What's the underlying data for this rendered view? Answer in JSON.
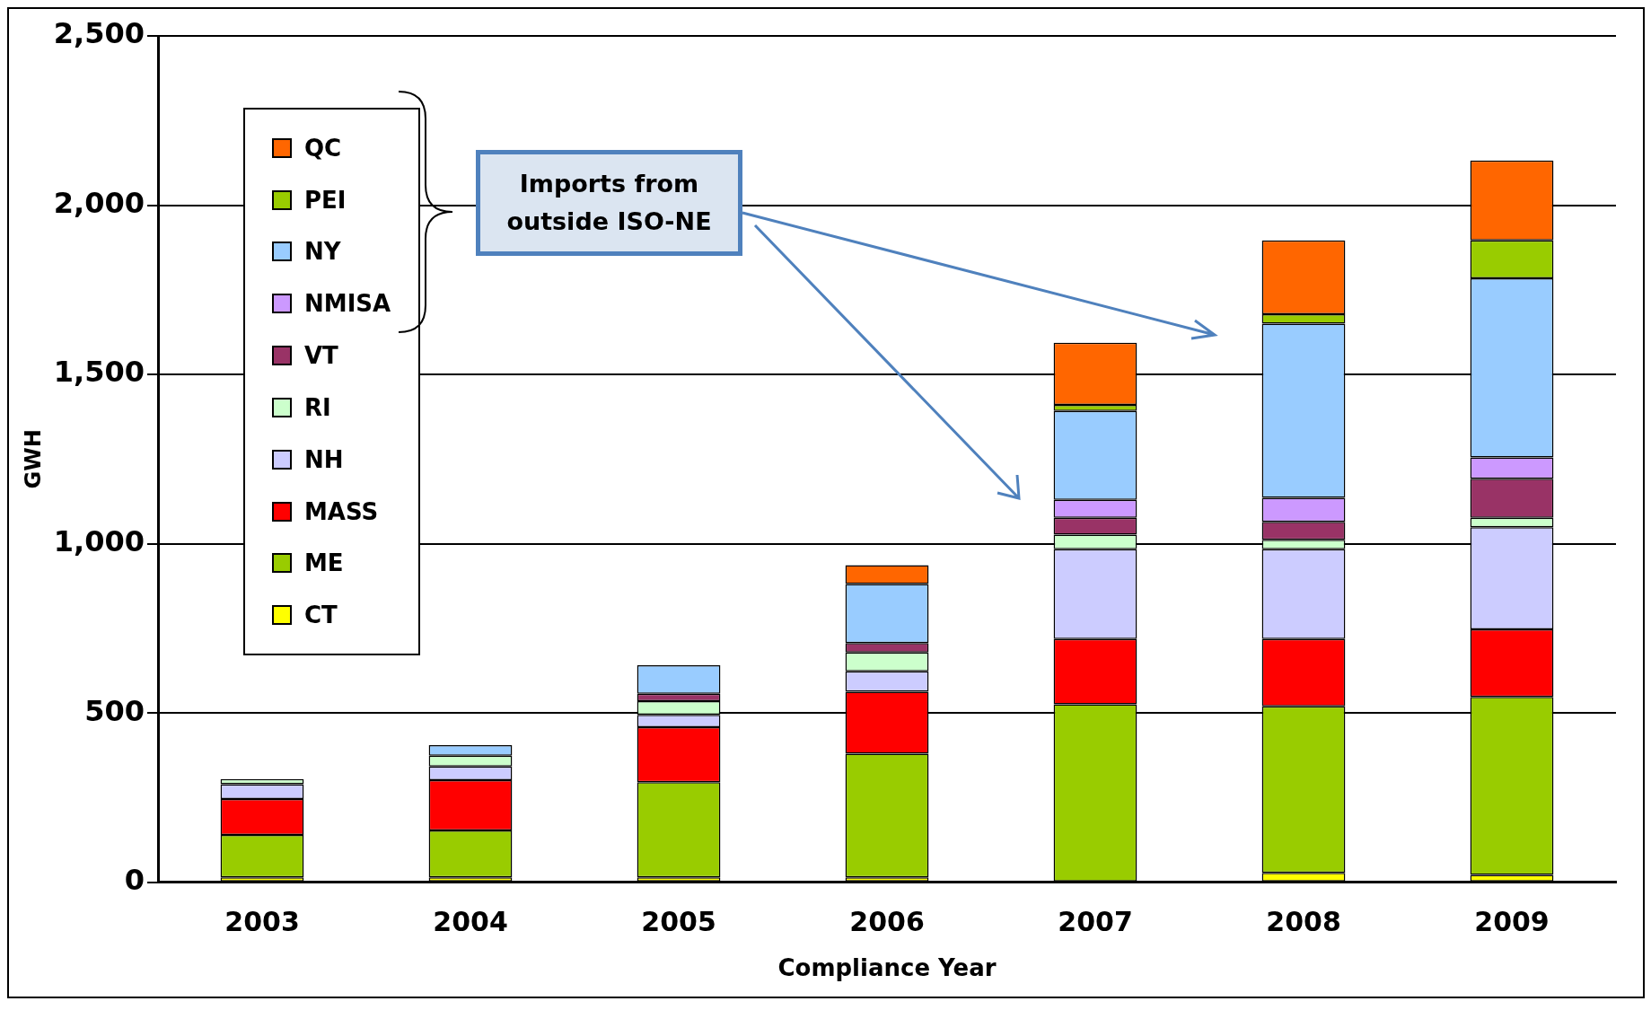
{
  "chart_data": {
    "type": "bar",
    "stacked": true,
    "xlabel": "Compliance Year",
    "ylabel": "GWH",
    "categories": [
      "2003",
      "2004",
      "2005",
      "2006",
      "2007",
      "2008",
      "2009"
    ],
    "series": [
      {
        "name": "CT",
        "color": "#ffff00",
        "values": [
          15,
          15,
          15,
          15,
          0,
          28,
          22
        ]
      },
      {
        "name": "ME",
        "color": "#99cc00",
        "values": [
          125,
          138,
          281,
          365,
          526,
          492,
          526
        ]
      },
      {
        "name": "MASS",
        "color": "#ff0000",
        "values": [
          106,
          149,
          162,
          183,
          193,
          199,
          199
        ]
      },
      {
        "name": "NH",
        "color": "#ccccff",
        "values": [
          44,
          40,
          37,
          60,
          265,
          265,
          302
        ]
      },
      {
        "name": "RI",
        "color": "#ccffcc",
        "values": [
          15,
          32,
          40,
          56,
          43,
          28,
          28
        ]
      },
      {
        "name": "VT",
        "color": "#993366",
        "values": [
          0,
          0,
          22,
          28,
          50,
          53,
          115
        ]
      },
      {
        "name": "NMISA",
        "color": "#cc99ff",
        "values": [
          0,
          0,
          0,
          0,
          53,
          71,
          63
        ]
      },
      {
        "name": "NY",
        "color": "#99ccff",
        "values": [
          0,
          31,
          84,
          174,
          262,
          514,
          529
        ]
      },
      {
        "name": "PEI",
        "color": "#99cc00",
        "values": [
          0,
          0,
          0,
          0,
          18,
          28,
          112
        ]
      },
      {
        "name": "QC",
        "color": "#ff6600",
        "values": [
          0,
          0,
          0,
          56,
          184,
          218,
          236
        ]
      }
    ],
    "ylim": [
      0,
      2500
    ],
    "yticks": [
      {
        "value": 0,
        "label": "0"
      },
      {
        "value": 500,
        "label": "500"
      },
      {
        "value": 1000,
        "label": "1,000"
      },
      {
        "value": 1500,
        "label": "1,500"
      },
      {
        "value": 2000,
        "label": "2,000"
      },
      {
        "value": 2500,
        "label": "2,500"
      }
    ],
    "grid": "y",
    "legend": "top left",
    "annotations": [
      "Imports from outside ISO-NE"
    ]
  }
}
